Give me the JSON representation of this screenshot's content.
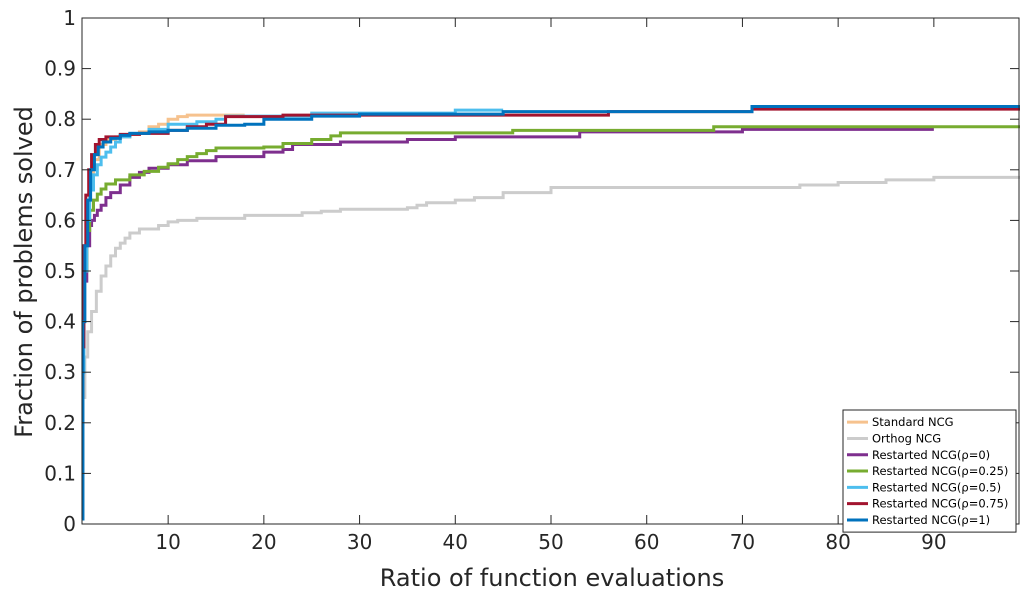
{
  "chart_data": {
    "type": "line",
    "title": "",
    "xlabel": "Ratio of function evaluations",
    "ylabel": "Fraction of problems solved",
    "xlim": [
      1,
      99
    ],
    "ylim": [
      0,
      1
    ],
    "xticks": [
      10,
      20,
      30,
      40,
      50,
      60,
      70,
      80,
      90
    ],
    "xtick_labels": [
      "10",
      "20",
      "30",
      "40",
      "50",
      "60",
      "70",
      "80",
      "90"
    ],
    "yticks": [
      0,
      0.1,
      0.2,
      0.3,
      0.4,
      0.5,
      0.6,
      0.7,
      0.8,
      0.9,
      1
    ],
    "ytick_labels": [
      "0",
      "0.1",
      "0.2",
      "0.3",
      "0.4",
      "0.5",
      "0.6",
      "0.7",
      "0.8",
      "0.9",
      "1"
    ],
    "grid": false,
    "legend_position": "bottom-right",
    "series": [
      {
        "name": "Standard NCG",
        "color": "#f6c28e",
        "x": [
          1,
          1.2,
          1.5,
          1.8,
          2.2,
          2.8,
          3.5,
          4.5,
          6,
          7,
          8,
          9,
          10,
          11,
          12,
          15,
          18
        ],
        "y": [
          0.3,
          0.5,
          0.62,
          0.68,
          0.72,
          0.75,
          0.76,
          0.765,
          0.77,
          0.775,
          0.785,
          0.79,
          0.8,
          0.805,
          0.808,
          0.808,
          0.808
        ]
      },
      {
        "name": "Orthog NCG",
        "color": "#cccccc",
        "x": [
          1,
          1.3,
          1.6,
          2,
          2.5,
          3,
          3.5,
          4,
          4.5,
          5,
          5.5,
          6,
          7,
          9,
          10,
          11,
          13,
          18,
          24,
          26,
          28,
          35,
          36,
          37,
          40,
          42,
          45,
          50,
          70,
          76,
          80,
          85,
          90,
          99
        ],
        "y": [
          0.25,
          0.33,
          0.38,
          0.42,
          0.46,
          0.49,
          0.51,
          0.53,
          0.545,
          0.555,
          0.565,
          0.575,
          0.583,
          0.59,
          0.597,
          0.6,
          0.604,
          0.61,
          0.615,
          0.618,
          0.622,
          0.625,
          0.63,
          0.635,
          0.64,
          0.645,
          0.655,
          0.665,
          0.665,
          0.67,
          0.675,
          0.68,
          0.685,
          0.685
        ]
      },
      {
        "name": "Restarted NCG(ρ=0)",
        "color": "#7e2f8e",
        "x": [
          1,
          1.2,
          1.5,
          1.8,
          2,
          2.3,
          2.6,
          3,
          3.5,
          4,
          5,
          6,
          7,
          8,
          10,
          12,
          15,
          20,
          22,
          23,
          28,
          35,
          40,
          53,
          70,
          90
        ],
        "y": [
          0.35,
          0.48,
          0.55,
          0.59,
          0.6,
          0.61,
          0.62,
          0.63,
          0.645,
          0.655,
          0.67,
          0.685,
          0.695,
          0.703,
          0.71,
          0.718,
          0.726,
          0.735,
          0.74,
          0.75,
          0.755,
          0.76,
          0.765,
          0.775,
          0.78,
          0.78
        ]
      },
      {
        "name": "Restarted NCG(ρ=0.25)",
        "color": "#77ac30",
        "x": [
          1,
          1.2,
          1.5,
          1.8,
          2.2,
          2.6,
          3,
          3.5,
          4.5,
          6,
          7.5,
          9,
          10,
          11,
          12,
          13,
          14,
          15,
          20,
          22,
          25,
          27,
          28,
          40,
          46,
          67,
          99
        ],
        "y": [
          0.35,
          0.5,
          0.58,
          0.62,
          0.64,
          0.652,
          0.662,
          0.672,
          0.68,
          0.69,
          0.697,
          0.705,
          0.712,
          0.72,
          0.726,
          0.732,
          0.738,
          0.743,
          0.745,
          0.752,
          0.76,
          0.767,
          0.773,
          0.773,
          0.778,
          0.785,
          0.785
        ]
      },
      {
        "name": "Restarted NCG(ρ=0.5)",
        "color": "#4dbeee",
        "x": [
          1,
          1.2,
          1.5,
          1.8,
          2.2,
          2.6,
          3,
          3.5,
          4,
          4.5,
          5,
          6,
          8,
          10,
          13,
          15,
          16,
          25,
          40,
          45
        ],
        "y": [
          0.3,
          0.5,
          0.6,
          0.66,
          0.69,
          0.71,
          0.725,
          0.735,
          0.745,
          0.755,
          0.765,
          0.772,
          0.78,
          0.79,
          0.795,
          0.8,
          0.806,
          0.812,
          0.818,
          0.818
        ]
      },
      {
        "name": "Restarted NCG(ρ=0.75)",
        "color": "#a2142f",
        "x": [
          1,
          1.2,
          1.4,
          1.7,
          2,
          2.4,
          2.8,
          3.5,
          5,
          7,
          10,
          12,
          14,
          16,
          22,
          56,
          71,
          99
        ],
        "y": [
          0.35,
          0.55,
          0.65,
          0.7,
          0.73,
          0.75,
          0.76,
          0.765,
          0.77,
          0.772,
          0.778,
          0.785,
          0.79,
          0.805,
          0.808,
          0.815,
          0.82,
          0.82
        ]
      },
      {
        "name": "Restarted NCG(ρ=1)",
        "color": "#0072bd",
        "x": [
          1,
          1.1,
          1.3,
          1.6,
          1.9,
          2.3,
          2.7,
          3.2,
          4,
          5,
          6,
          8,
          10,
          12,
          15,
          18,
          20,
          25,
          30,
          45,
          71,
          99
        ],
        "y": [
          0.01,
          0.4,
          0.55,
          0.64,
          0.7,
          0.73,
          0.745,
          0.755,
          0.762,
          0.768,
          0.772,
          0.775,
          0.778,
          0.782,
          0.788,
          0.79,
          0.8,
          0.806,
          0.81,
          0.815,
          0.825,
          0.825
        ]
      }
    ]
  }
}
